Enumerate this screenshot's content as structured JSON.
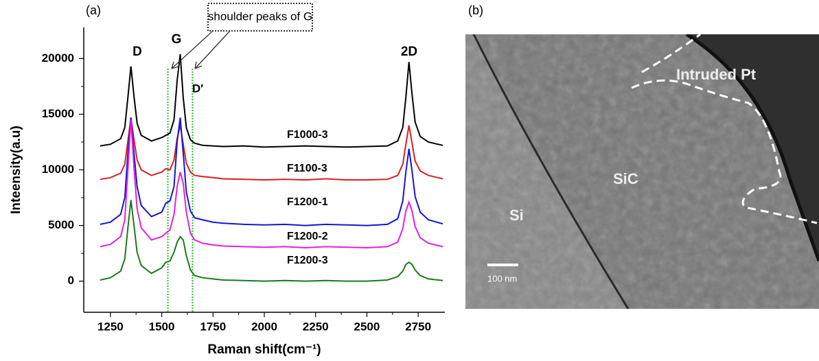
{
  "chart_data": {
    "type": "line",
    "panel_label": "(a)",
    "x_label": "Raman shift(cm⁻¹)",
    "y_label": "Inteensity(a.u)",
    "xlim": [
      1120,
      2880
    ],
    "xticks": [
      1250,
      1500,
      1750,
      2000,
      2250,
      2500,
      2750
    ],
    "ylim": [
      -2800,
      22800
    ],
    "yticks": [
      0,
      5000,
      10000,
      15000,
      20000
    ],
    "x": [
      1200,
      1250,
      1300,
      1320,
      1335,
      1350,
      1365,
      1380,
      1400,
      1450,
      1500,
      1520,
      1540,
      1560,
      1575,
      1590,
      1605,
      1620,
      1640,
      1660,
      1700,
      1750,
      1800,
      1900,
      2000,
      2100,
      2200,
      2300,
      2400,
      2500,
      2600,
      2650,
      2675,
      2690,
      2705,
      2720,
      2735,
      2760,
      2800,
      2870
    ],
    "series": [
      {
        "name": "F1000-3",
        "color": "#000000",
        "values": [
          12150,
          12300,
          12800,
          13800,
          16500,
          19300,
          16600,
          14200,
          13100,
          12600,
          12900,
          13100,
          13300,
          14500,
          18000,
          20400,
          16500,
          13800,
          12700,
          12400,
          12200,
          12150,
          12100,
          12150,
          12050,
          12100,
          12150,
          12100,
          12050,
          12100,
          12150,
          12600,
          13800,
          16500,
          19700,
          16800,
          14300,
          13000,
          12500,
          12200
        ]
      },
      {
        "name": "F1100-3",
        "color": "#d62020",
        "values": [
          9150,
          9300,
          9700,
          10500,
          12600,
          14700,
          12700,
          10900,
          10000,
          9500,
          9800,
          10100,
          10000,
          10900,
          12800,
          14000,
          12300,
          10600,
          9800,
          9500,
          9400,
          9300,
          9200,
          9150,
          9100,
          9150,
          9100,
          9200,
          9100,
          9100,
          9150,
          9500,
          10500,
          12300,
          14000,
          12400,
          10800,
          9900,
          9500,
          9200
        ]
      },
      {
        "name": "F1200-1",
        "color": "#1515d0",
        "values": [
          5100,
          5300,
          6000,
          7500,
          11500,
          14700,
          11500,
          8500,
          6800,
          5800,
          6200,
          7000,
          7200,
          8500,
          12500,
          14700,
          11500,
          8000,
          6300,
          5700,
          5500,
          5300,
          5200,
          5100,
          5050,
          5100,
          5000,
          5100,
          5050,
          5000,
          5100,
          5600,
          7200,
          9800,
          11900,
          9900,
          7600,
          6200,
          5500,
          5150
        ]
      },
      {
        "name": "F1200-2",
        "color": "#e020e0",
        "values": [
          3100,
          3300,
          4000,
          5500,
          10000,
          14500,
          10200,
          6500,
          4800,
          3700,
          4000,
          4300,
          4600,
          6000,
          8500,
          9800,
          8800,
          6200,
          4300,
          3700,
          3400,
          3250,
          3150,
          3100,
          3050,
          3100,
          3000,
          3100,
          3050,
          3000,
          3100,
          3500,
          4700,
          6300,
          7100,
          6300,
          4900,
          3900,
          3400,
          3100
        ]
      },
      {
        "name": "F1200-3",
        "color": "#1a7a1a",
        "values": [
          100,
          300,
          900,
          2000,
          4800,
          7300,
          5000,
          2600,
          1400,
          700,
          1200,
          1700,
          1800,
          2600,
          3500,
          4000,
          3700,
          2300,
          1000,
          500,
          300,
          200,
          100,
          50,
          0,
          50,
          0,
          50,
          0,
          0,
          100,
          400,
          900,
          1500,
          1700,
          1500,
          1000,
          500,
          200,
          50
        ]
      }
    ],
    "reference_lines_x": [
      1530,
      1650
    ],
    "peak_labels": [
      "D",
      "G",
      "D′",
      "2D"
    ],
    "annotation": "shoulder peaks of G"
  },
  "panel_b": {
    "panel_label": "(b)",
    "labels": [
      "Intruded Pt",
      "SiC",
      "Si"
    ],
    "scale_bar": "100 nm"
  }
}
